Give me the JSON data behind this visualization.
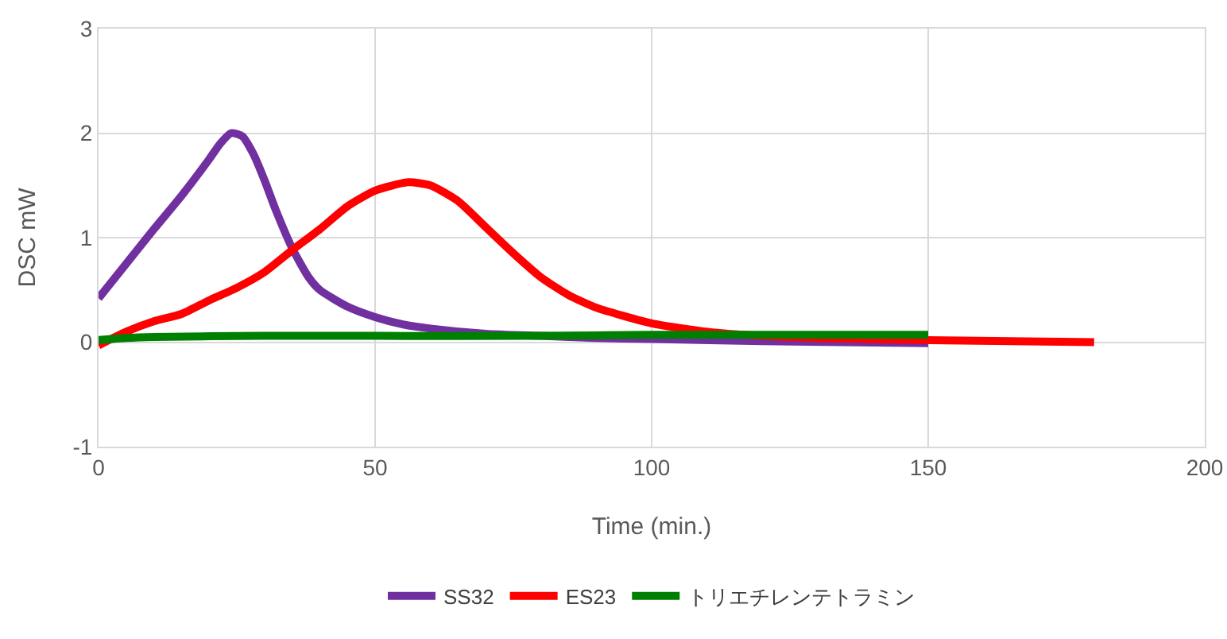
{
  "chart_data": {
    "type": "line",
    "xlabel": "Time (min.)",
    "ylabel": "DSC mW",
    "xlim": [
      0,
      200
    ],
    "xticks": [
      0,
      50,
      100,
      150,
      200
    ],
    "ylim": [
      -1,
      3
    ],
    "yticks": [
      -1,
      0,
      1,
      2,
      3
    ],
    "grid": true,
    "legend": "bottom",
    "marker": "none",
    "line_style": "solid",
    "series": [
      {
        "name": "SS32",
        "color": "#7030a0",
        "x": [
          0,
          5,
          10,
          15,
          20,
          22,
          24,
          26,
          28,
          30,
          32,
          35,
          38,
          40,
          45,
          50,
          55,
          60,
          70,
          80,
          90,
          100,
          120,
          150
        ],
        "values": [
          0.42,
          0.75,
          1.08,
          1.4,
          1.75,
          1.9,
          2.0,
          1.97,
          1.8,
          1.55,
          1.27,
          0.9,
          0.62,
          0.5,
          0.34,
          0.24,
          0.17,
          0.13,
          0.08,
          0.06,
          0.04,
          0.03,
          0.01,
          -0.01
        ]
      },
      {
        "name": "ES23",
        "color": "#ff0000",
        "x": [
          0,
          5,
          10,
          15,
          20,
          25,
          30,
          35,
          40,
          45,
          50,
          56,
          60,
          65,
          70,
          75,
          80,
          85,
          90,
          100,
          110,
          120,
          130,
          150,
          180
        ],
        "values": [
          -0.03,
          0.1,
          0.2,
          0.27,
          0.4,
          0.52,
          0.67,
          0.88,
          1.08,
          1.3,
          1.45,
          1.53,
          1.5,
          1.35,
          1.1,
          0.85,
          0.62,
          0.45,
          0.33,
          0.18,
          0.1,
          0.06,
          0.04,
          0.02,
          0.0
        ]
      },
      {
        "name": "トリエチレンテトラミン",
        "color": "#008000",
        "x": [
          0,
          5,
          10,
          30,
          50,
          80,
          100,
          120,
          150
        ],
        "values": [
          0.02,
          0.04,
          0.05,
          0.06,
          0.06,
          0.06,
          0.07,
          0.07,
          0.07
        ]
      }
    ]
  }
}
